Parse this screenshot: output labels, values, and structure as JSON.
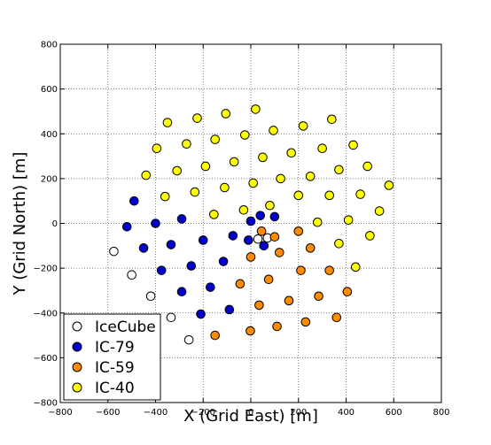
{
  "chart_data": {
    "type": "scatter",
    "title": "",
    "xlabel": "X (Grid East) [m]",
    "ylabel": "Y (Grid North) [m]",
    "xlim": [
      -800,
      800
    ],
    "ylim": [
      -800,
      800
    ],
    "xticks": [
      -800,
      -600,
      -400,
      -200,
      0,
      200,
      400,
      600,
      800
    ],
    "yticks": [
      -800,
      -600,
      -400,
      -200,
      0,
      200,
      400,
      600,
      800
    ],
    "grid": true,
    "legend_position": "lower-left",
    "series": [
      {
        "name": "IceCube",
        "color": "#ffffff",
        "points": [
          [
            -575,
            -125
          ],
          [
            -500,
            -230
          ],
          [
            -420,
            -325
          ],
          [
            -335,
            -420
          ],
          [
            -260,
            -520
          ],
          [
            30,
            -70
          ],
          [
            70,
            -65
          ]
        ]
      },
      {
        "name": "IC-79",
        "color": "#0000cc",
        "points": [
          [
            -490,
            100
          ],
          [
            -520,
            -15
          ],
          [
            -450,
            -110
          ],
          [
            -375,
            -210
          ],
          [
            -290,
            -305
          ],
          [
            -210,
            -405
          ],
          [
            -400,
            0
          ],
          [
            -335,
            -95
          ],
          [
            -250,
            -190
          ],
          [
            -170,
            -285
          ],
          [
            -90,
            -385
          ],
          [
            -290,
            20
          ],
          [
            -200,
            -75
          ],
          [
            -115,
            -170
          ],
          [
            -75,
            -55
          ],
          [
            0,
            10
          ],
          [
            40,
            35
          ],
          [
            100,
            30
          ],
          [
            -10,
            -75
          ],
          [
            55,
            -100
          ]
        ]
      },
      {
        "name": "IC-59",
        "color": "#ff8c00",
        "points": [
          [
            45,
            -35
          ],
          [
            100,
            -60
          ],
          [
            0,
            -150
          ],
          [
            -150,
            -500
          ],
          [
            -45,
            -270
          ],
          [
            35,
            -365
          ],
          [
            75,
            -250
          ],
          [
            120,
            -130
          ],
          [
            200,
            -35
          ],
          [
            160,
            -345
          ],
          [
            210,
            -210
          ],
          [
            250,
            -110
          ],
          [
            -2,
            -480
          ],
          [
            110,
            -460
          ],
          [
            230,
            -440
          ],
          [
            285,
            -325
          ],
          [
            330,
            -210
          ],
          [
            360,
            -420
          ],
          [
            405,
            -305
          ]
        ]
      },
      {
        "name": "IC-40",
        "color": "#ffff00",
        "points": [
          [
            -350,
            450
          ],
          [
            -225,
            470
          ],
          [
            -105,
            490
          ],
          [
            20,
            510
          ],
          [
            -395,
            335
          ],
          [
            -270,
            355
          ],
          [
            -150,
            375
          ],
          [
            -25,
            395
          ],
          [
            95,
            415
          ],
          [
            220,
            435
          ],
          [
            340,
            465
          ],
          [
            -440,
            215
          ],
          [
            -310,
            235
          ],
          [
            -190,
            255
          ],
          [
            -70,
            275
          ],
          [
            50,
            295
          ],
          [
            170,
            315
          ],
          [
            300,
            335
          ],
          [
            430,
            350
          ],
          [
            -360,
            120
          ],
          [
            -235,
            140
          ],
          [
            -110,
            160
          ],
          [
            10,
            180
          ],
          [
            125,
            200
          ],
          [
            250,
            210
          ],
          [
            370,
            240
          ],
          [
            490,
            255
          ],
          [
            -155,
            40
          ],
          [
            -30,
            60
          ],
          [
            80,
            80
          ],
          [
            200,
            125
          ],
          [
            330,
            125
          ],
          [
            460,
            130
          ],
          [
            580,
            170
          ],
          [
            280,
            5
          ],
          [
            410,
            15
          ],
          [
            540,
            55
          ],
          [
            500,
            -55
          ],
          [
            370,
            -90
          ],
          [
            440,
            -195
          ]
        ]
      }
    ]
  }
}
